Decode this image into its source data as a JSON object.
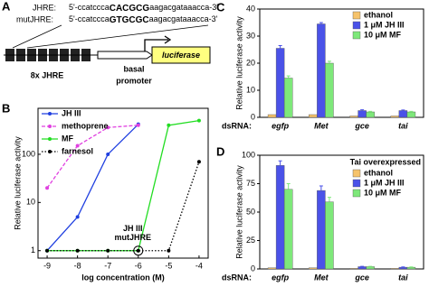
{
  "diagram": {
    "panel_label": "A",
    "jhre_label": "JHRE:",
    "jhre_seq": [
      "5'-ccatccca",
      "CACGCG",
      "aagacgataaacca-3'"
    ],
    "mut_label": "mutJHRE:",
    "mut_seq": [
      "5'-ccatccca",
      "GTGCGC",
      "aagacgataaacca-3'"
    ],
    "repeat_label": "8x JHRE",
    "promoter_label": [
      "basal",
      "promoter"
    ],
    "reporter": "luciferase"
  },
  "chart_data": [
    {
      "type": "line",
      "panel_label": "B",
      "ylabel": "Relative luciferase activity",
      "xlabel": "log concentration (M)",
      "log_y": true,
      "xlim": [
        -9.3,
        -3.7
      ],
      "ylim": [
        0.7,
        900
      ],
      "xticks": [
        -9,
        -8,
        -7,
        -6,
        -5,
        -4
      ],
      "yticks": [
        1,
        10,
        100
      ],
      "legend": "top-left",
      "series": [
        {
          "name": "JH III",
          "color": "#1f3fe0",
          "dash": "solid",
          "x": [
            -9,
            -8,
            -7,
            -6
          ],
          "values": [
            1,
            5,
            100,
            420
          ]
        },
        {
          "name": "methoprene",
          "color": "#e040e0",
          "dash": "dashed",
          "x": [
            -9,
            -8,
            -7,
            -6
          ],
          "values": [
            20,
            150,
            360,
            400
          ]
        },
        {
          "name": "MF",
          "color": "#22dd22",
          "dash": "solid",
          "x": [
            -9,
            -8,
            -7,
            -6,
            -5,
            -4
          ],
          "values": [
            1,
            1,
            1,
            1,
            400,
            500
          ]
        },
        {
          "name": "farnesol",
          "color": "#000000",
          "dash": "dotted",
          "x": [
            -9,
            -8,
            -7,
            -6,
            -5,
            -4
          ],
          "values": [
            1,
            1,
            1,
            1,
            1,
            70
          ]
        }
      ],
      "annotation": {
        "text": [
          "JH III",
          "mutJHRE"
        ],
        "x": -6,
        "y": 1
      }
    },
    {
      "type": "bar",
      "panel_label": "C",
      "ylabel": "Relative luciferase activity",
      "xlabel": "dsRNA:",
      "categories": [
        "egfp",
        "Met",
        "gce",
        "tai"
      ],
      "ylim": [
        0,
        40
      ],
      "yticks": [
        0,
        10,
        20,
        30,
        40
      ],
      "legend": "top-right",
      "series": [
        {
          "name": "ethanol",
          "color": "#f6c36b",
          "values": [
            1,
            1,
            0.5,
            0.5
          ]
        },
        {
          "name": "1 μM JH III",
          "color": "#4a52e8",
          "values": [
            25.5,
            34.5,
            2.5,
            2.5
          ],
          "errors": [
            1,
            0.5,
            0.3,
            0.2
          ]
        },
        {
          "name": "10 μM MF",
          "color": "#7ee87a",
          "values": [
            14.5,
            20,
            2,
            2
          ],
          "errors": [
            0.8,
            0.7,
            0.2,
            0.2
          ]
        }
      ]
    },
    {
      "type": "bar",
      "panel_label": "D",
      "subtitle": "Tai overexpressed",
      "ylabel": "Relative luciferase activity",
      "xlabel": "dsRNA:",
      "categories": [
        "egfp",
        "Met",
        "gce",
        "tai"
      ],
      "ylim": [
        0,
        100
      ],
      "yticks": [
        0,
        25,
        50,
        75,
        100
      ],
      "legend": "top-right",
      "series": [
        {
          "name": "ethanol",
          "color": "#f6c36b",
          "values": [
            1,
            1,
            0.5,
            0.5
          ]
        },
        {
          "name": "1 μM JH III",
          "color": "#4a52e8",
          "values": [
            91,
            69,
            2,
            1.5
          ],
          "errors": [
            4,
            4,
            0.3,
            0.3
          ]
        },
        {
          "name": "10 μM MF",
          "color": "#7ee87a",
          "values": [
            70,
            59,
            2,
            1.5
          ],
          "errors": [
            5,
            4,
            0.3,
            0.3
          ]
        }
      ]
    }
  ]
}
